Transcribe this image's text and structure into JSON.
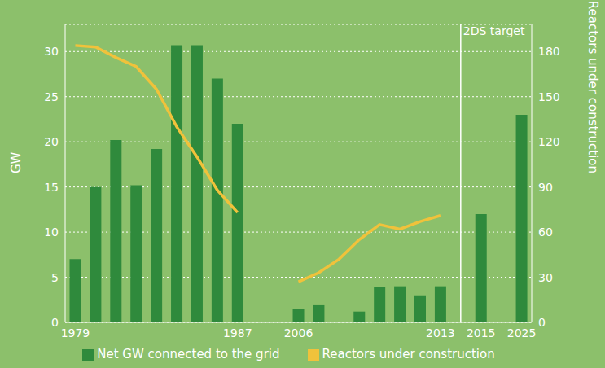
{
  "chart_data": {
    "type": "bar",
    "y_label": "GW",
    "y2_label": "Reactors under construction",
    "categories": [
      "1979",
      null,
      null,
      null,
      null,
      null,
      null,
      null,
      "1987",
      null,
      null,
      "2006",
      null,
      null,
      null,
      null,
      null,
      null,
      "2013",
      null,
      "2015",
      null,
      "2025"
    ],
    "series": [
      {
        "name": "Net GW connected to the grid",
        "type": "bar",
        "color": "#2f8a3c",
        "values": [
          7,
          15,
          20.2,
          15.2,
          19.2,
          30.7,
          30.7,
          27,
          22,
          null,
          null,
          1.5,
          1.9,
          null,
          1.2,
          3.9,
          4,
          3,
          4,
          null,
          12,
          null,
          23
        ]
      },
      {
        "name": "Reactors under construction",
        "type": "line",
        "axis": "y2",
        "color": "#f0c23b",
        "values": [
          184,
          183,
          176,
          170,
          155,
          130,
          110,
          88,
          73,
          null,
          null,
          27,
          33,
          42,
          55,
          65,
          62,
          67,
          71,
          null,
          null,
          null,
          null
        ]
      }
    ],
    "ylim": [
      0,
      33
    ],
    "yticks": [
      0,
      5,
      10,
      15,
      20,
      25,
      30
    ],
    "y2lim": [
      0,
      198
    ],
    "y2ticks": [
      0,
      30,
      60,
      90,
      120,
      150,
      180
    ],
    "grid": true,
    "legend": "bottom",
    "annotations": [
      {
        "text": "2DS target",
        "after": "2013"
      }
    ]
  }
}
